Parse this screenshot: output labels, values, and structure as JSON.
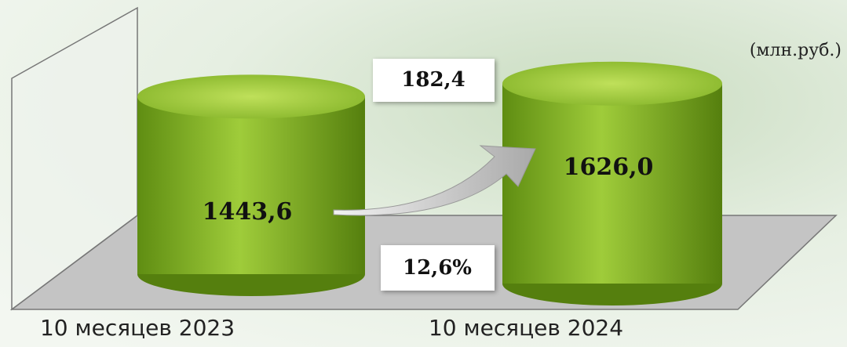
{
  "chart_data": {
    "type": "cylinder",
    "categories": [
      "10 месяцев 2023",
      "10 месяцев 2024"
    ],
    "values": [
      1443.6,
      1626.0
    ],
    "value_labels": [
      "1443,6",
      "1626,0"
    ],
    "color": "#8dbb2c",
    "unit": "(млн.руб.)",
    "annotations": [
      {
        "text": "182,4"
      },
      {
        "text": "12,6%"
      }
    ]
  }
}
